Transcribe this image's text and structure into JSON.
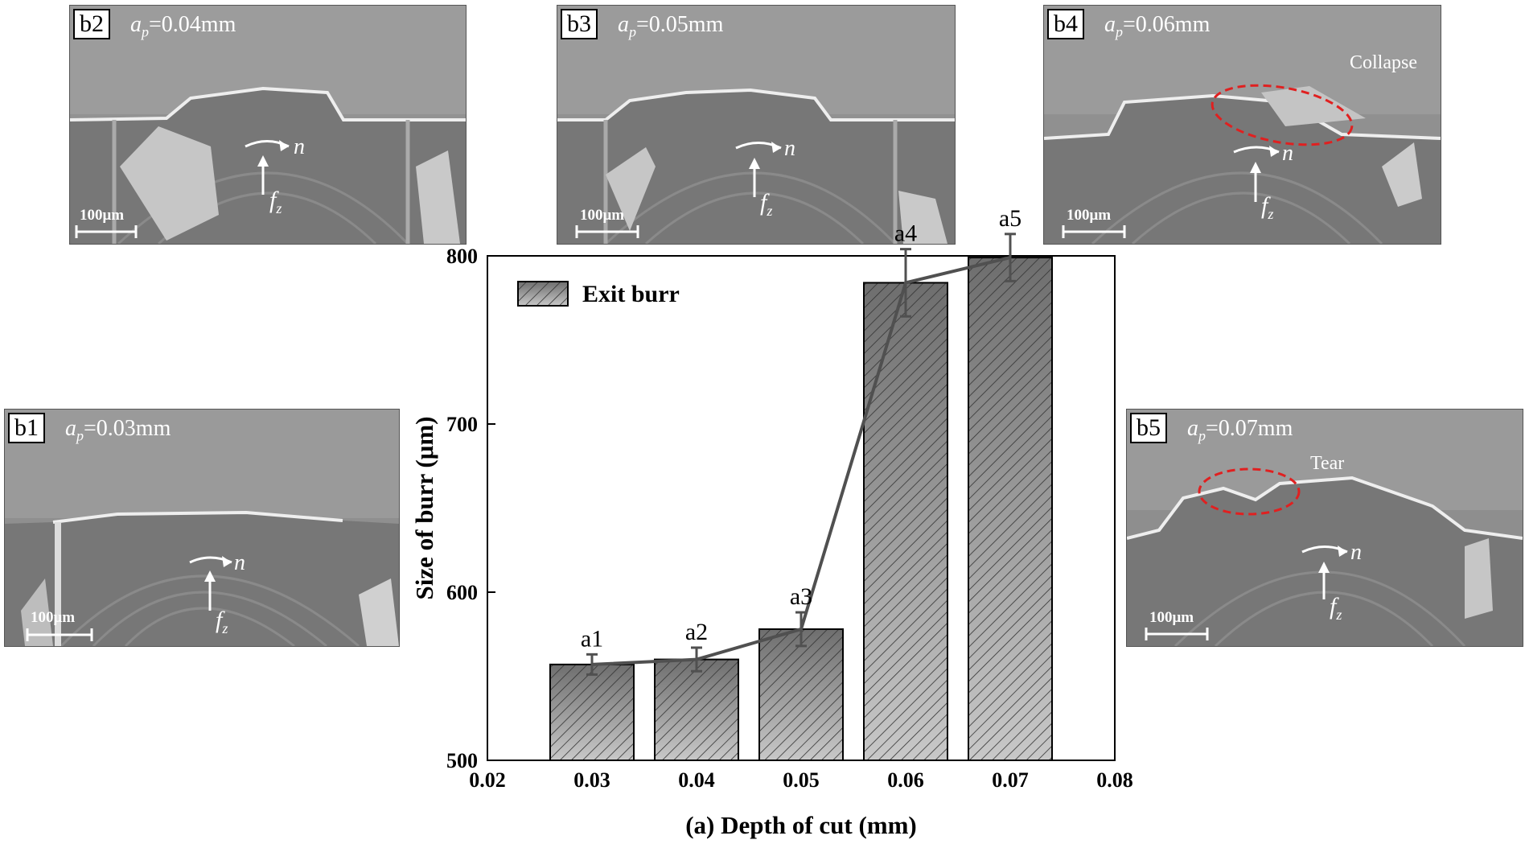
{
  "panels": [
    {
      "id": "b1",
      "ap_sym": "a",
      "ap_sub": "p",
      "ap_val": "=0.03mm",
      "scale": "100μm",
      "annotation": ""
    },
    {
      "id": "b2",
      "ap_sym": "a",
      "ap_sub": "p",
      "ap_val": "=0.04mm",
      "scale": "100μm",
      "annotation": ""
    },
    {
      "id": "b3",
      "ap_sym": "a",
      "ap_sub": "p",
      "ap_val": "=0.05mm",
      "scale": "100μm",
      "annotation": ""
    },
    {
      "id": "b4",
      "ap_sym": "a",
      "ap_sub": "p",
      "ap_val": "=0.06mm",
      "scale": "100μm",
      "annotation": "Collapse"
    },
    {
      "id": "b5",
      "ap_sym": "a",
      "ap_sub": "p",
      "ap_val": "=0.07mm",
      "scale": "100μm",
      "annotation": "Tear"
    }
  ],
  "dir_labels": {
    "n": "n",
    "f": "f",
    "f_sub": "z"
  },
  "colors": {
    "bar_fill_light": "#c8c8c8",
    "bar_fill_dark": "#6e6e6e",
    "line": "#505050",
    "highlight": "#e02020",
    "sem_bg": "#8c8c8c"
  },
  "chart_data": {
    "type": "bar",
    "xlabel": "(a) Depth of cut (mm)",
    "ylabel": "Size of burr (μm)",
    "xlim": [
      0.02,
      0.08
    ],
    "ylim": [
      500,
      800
    ],
    "xticks": [
      "0.02",
      "0.03",
      "0.04",
      "0.05",
      "0.06",
      "0.07",
      "0.08"
    ],
    "yticks": [
      "500",
      "600",
      "700",
      "800"
    ],
    "legend": {
      "label": "Exit burr",
      "position": "top-left"
    },
    "x": [
      0.03,
      0.04,
      0.05,
      0.06,
      0.07
    ],
    "values": [
      557,
      560,
      578,
      784,
      799
    ],
    "errors": [
      6,
      7,
      10,
      20,
      14
    ],
    "bar_labels": [
      "a1",
      "a2",
      "a3",
      "a4",
      "a5"
    ],
    "line_connects_bars": true
  }
}
